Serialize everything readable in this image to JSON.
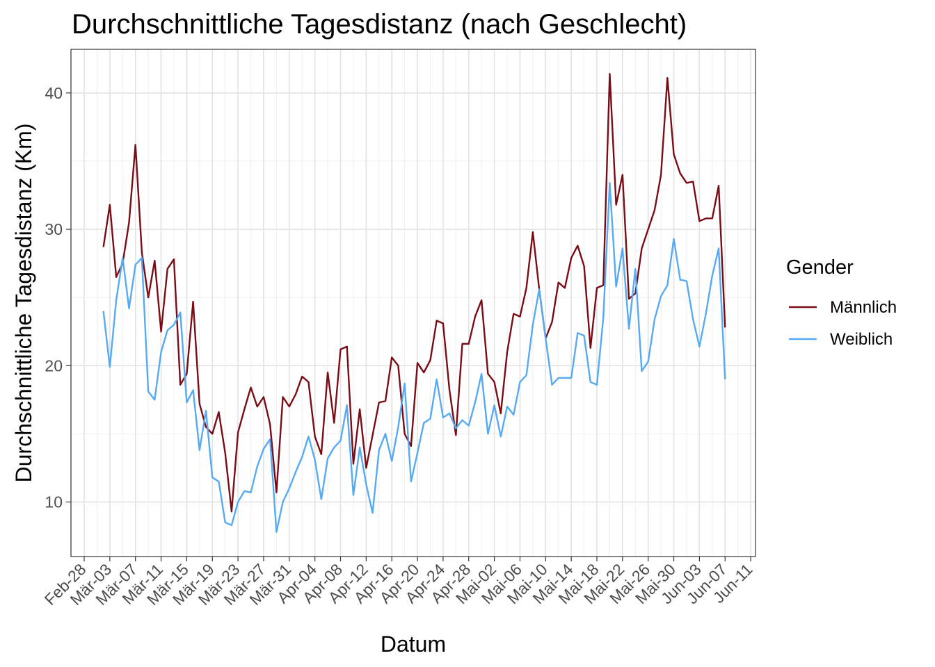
{
  "chart_data": {
    "type": "line",
    "title": "Durchschnittliche Tagesdistanz (nach Geschlecht)",
    "xlabel": "Datum",
    "ylabel": "Durchschnittliche Tagesdistanz (Km)",
    "x_start": "2020-03-02",
    "x_tick_labels": [
      "Feb-28",
      "Mär-03",
      "Mär-07",
      "Mär-11",
      "Mär-15",
      "Mär-19",
      "Mär-23",
      "Mär-27",
      "Mär-31",
      "Apr-04",
      "Apr-08",
      "Apr-12",
      "Apr-16",
      "Apr-20",
      "Apr-24",
      "Apr-28",
      "Mai-02",
      "Mai-06",
      "Mai-10",
      "Mai-14",
      "Mai-18",
      "Mai-22",
      "Mai-26",
      "Mai-30",
      "Jun-03",
      "Jun-07",
      "Jun-11"
    ],
    "y_ticks": [
      10,
      20,
      30,
      40
    ],
    "ylim": [
      6,
      43.2
    ],
    "grid": true,
    "legend": {
      "title": "Gender",
      "position": "right"
    },
    "series": [
      {
        "name": "Männlich",
        "color": "#7a0c16",
        "values": [
          28.7,
          31.8,
          26.5,
          27.5,
          30.5,
          36.2,
          28.3,
          25.0,
          27.7,
          22.5,
          27.1,
          27.8,
          18.6,
          19.4,
          24.7,
          17.2,
          15.5,
          15.0,
          16.6,
          13.6,
          9.3,
          15.1,
          16.8,
          18.4,
          17.0,
          17.7,
          15.7,
          10.7,
          17.7,
          17.0,
          17.9,
          19.2,
          18.8,
          14.8,
          13.5,
          19.5,
          15.8,
          21.2,
          21.4,
          12.8,
          16.8,
          12.5,
          14.9,
          17.3,
          17.4,
          20.6,
          20.0,
          15.0,
          14.1,
          20.2,
          19.5,
          20.4,
          23.3,
          23.1,
          18.2,
          14.9,
          21.6,
          21.6,
          23.6,
          24.8,
          19.4,
          18.8,
          16.5,
          21.0,
          23.8,
          23.6,
          25.7,
          29.8,
          25.6,
          22.0,
          23.2,
          26.1,
          25.7,
          27.9,
          28.8,
          27.3,
          21.3,
          25.7,
          25.9,
          41.4,
          31.8,
          34.0,
          24.9,
          25.3,
          28.6,
          30.0,
          31.4,
          34.0,
          41.1,
          35.5,
          34.1,
          33.4,
          33.5,
          30.6,
          30.8,
          30.8,
          33.2,
          22.8
        ]
      },
      {
        "name": "Weiblich",
        "color": "#56aaf4",
        "values": [
          24.0,
          19.9,
          24.8,
          27.9,
          24.2,
          27.4,
          27.9,
          18.1,
          17.5,
          21.0,
          22.6,
          23.0,
          23.9,
          17.3,
          18.2,
          13.8,
          16.7,
          11.8,
          11.5,
          8.5,
          8.3,
          10.0,
          10.8,
          10.7,
          12.6,
          13.9,
          14.6,
          7.8,
          10.0,
          11.0,
          12.2,
          13.3,
          14.8,
          13.1,
          10.2,
          13.2,
          14.0,
          14.5,
          17.1,
          10.5,
          14.0,
          11.3,
          9.2,
          13.8,
          15.0,
          13.0,
          15.5,
          18.7,
          11.5,
          13.6,
          15.8,
          16.1,
          19.0,
          16.2,
          16.5,
          15.4,
          16.0,
          15.6,
          17.3,
          19.4,
          15.0,
          17.1,
          14.8,
          17.0,
          16.4,
          18.8,
          19.3,
          23.0,
          25.6,
          22.0,
          18.6,
          19.1,
          19.1,
          19.1,
          22.4,
          22.2,
          18.8,
          18.6,
          23.5,
          33.4,
          25.8,
          28.6,
          22.7,
          27.1,
          19.6,
          20.3,
          23.4,
          25.1,
          25.9,
          29.3,
          26.3,
          26.2,
          23.4,
          21.4,
          23.8,
          26.6,
          28.6,
          19.0
        ]
      }
    ]
  }
}
